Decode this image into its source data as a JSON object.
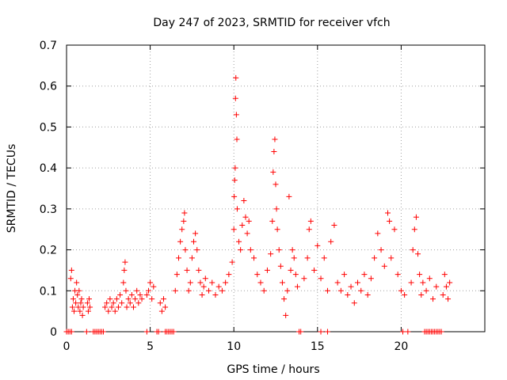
{
  "chart_data": {
    "type": "scatter",
    "title": "Day 247 of 2023, SRMTID for receiver vfch",
    "xlabel": "GPS time / hours",
    "ylabel": "SRMTID / TECUs",
    "xlim": [
      0,
      25
    ],
    "ylim": [
      0,
      0.7
    ],
    "xticks": [
      0,
      5,
      10,
      15,
      20
    ],
    "yticks": [
      0,
      0.1,
      0.2,
      0.3,
      0.4,
      0.5,
      0.6,
      0.7
    ],
    "grid": true,
    "series": [
      {
        "name": "SRMTID",
        "color": "#ff0000",
        "marker": "+",
        "points": [
          [
            0.25,
            0.13
          ],
          [
            0.3,
            0.15
          ],
          [
            0.35,
            0.06
          ],
          [
            0.4,
            0.08
          ],
          [
            0.45,
            0.05
          ],
          [
            0.5,
            0.1
          ],
          [
            0.55,
            0.07
          ],
          [
            0.6,
            0.12
          ],
          [
            0.65,
            0.09
          ],
          [
            0.7,
            0.06
          ],
          [
            0.75,
            0.1
          ],
          [
            0.8,
            0.05
          ],
          [
            0.85,
            0.07
          ],
          [
            0.9,
            0.08
          ],
          [
            0.95,
            0.04
          ],
          [
            1.0,
            0.06
          ],
          [
            1.25,
            0.07
          ],
          [
            1.3,
            0.05
          ],
          [
            1.35,
            0.08
          ],
          [
            1.4,
            0.06
          ],
          [
            2.3,
            0.06
          ],
          [
            2.4,
            0.07
          ],
          [
            2.5,
            0.05
          ],
          [
            2.6,
            0.08
          ],
          [
            2.7,
            0.06
          ],
          [
            2.8,
            0.07
          ],
          [
            2.9,
            0.05
          ],
          [
            3.0,
            0.08
          ],
          [
            3.1,
            0.06
          ],
          [
            3.2,
            0.09
          ],
          [
            3.3,
            0.07
          ],
          [
            3.4,
            0.12
          ],
          [
            3.45,
            0.15
          ],
          [
            3.5,
            0.17
          ],
          [
            3.55,
            0.1
          ],
          [
            3.6,
            0.06
          ],
          [
            3.7,
            0.08
          ],
          [
            3.8,
            0.07
          ],
          [
            3.9,
            0.09
          ],
          [
            4.0,
            0.06
          ],
          [
            4.1,
            0.08
          ],
          [
            4.2,
            0.1
          ],
          [
            4.3,
            0.07
          ],
          [
            4.4,
            0.09
          ],
          [
            4.5,
            0.08
          ],
          [
            4.8,
            0.09
          ],
          [
            4.9,
            0.1
          ],
          [
            5.0,
            0.12
          ],
          [
            5.1,
            0.08
          ],
          [
            5.2,
            0.11
          ],
          [
            5.6,
            0.07
          ],
          [
            5.7,
            0.05
          ],
          [
            5.8,
            0.08
          ],
          [
            5.9,
            0.06
          ],
          [
            6.5,
            0.1
          ],
          [
            6.6,
            0.14
          ],
          [
            6.7,
            0.18
          ],
          [
            6.8,
            0.22
          ],
          [
            6.9,
            0.25
          ],
          [
            7.0,
            0.27
          ],
          [
            7.05,
            0.29
          ],
          [
            7.1,
            0.2
          ],
          [
            7.2,
            0.15
          ],
          [
            7.3,
            0.1
          ],
          [
            7.4,
            0.12
          ],
          [
            7.5,
            0.18
          ],
          [
            7.6,
            0.22
          ],
          [
            7.7,
            0.24
          ],
          [
            7.8,
            0.2
          ],
          [
            7.9,
            0.15
          ],
          [
            8.0,
            0.12
          ],
          [
            8.1,
            0.09
          ],
          [
            8.2,
            0.11
          ],
          [
            8.3,
            0.13
          ],
          [
            8.5,
            0.1
          ],
          [
            8.7,
            0.12
          ],
          [
            8.9,
            0.09
          ],
          [
            9.1,
            0.11
          ],
          [
            9.3,
            0.1
          ],
          [
            9.5,
            0.12
          ],
          [
            9.7,
            0.14
          ],
          [
            9.9,
            0.17
          ],
          [
            10.0,
            0.25
          ],
          [
            10.02,
            0.33
          ],
          [
            10.05,
            0.37
          ],
          [
            10.08,
            0.4
          ],
          [
            10.1,
            0.57
          ],
          [
            10.12,
            0.62
          ],
          [
            10.15,
            0.53
          ],
          [
            10.18,
            0.47
          ],
          [
            10.2,
            0.3
          ],
          [
            10.3,
            0.22
          ],
          [
            10.4,
            0.2
          ],
          [
            10.5,
            0.26
          ],
          [
            10.6,
            0.32
          ],
          [
            10.7,
            0.28
          ],
          [
            10.8,
            0.24
          ],
          [
            10.9,
            0.27
          ],
          [
            11.0,
            0.2
          ],
          [
            11.2,
            0.18
          ],
          [
            11.4,
            0.14
          ],
          [
            11.6,
            0.12
          ],
          [
            11.8,
            0.1
          ],
          [
            12.0,
            0.15
          ],
          [
            12.2,
            0.19
          ],
          [
            12.3,
            0.27
          ],
          [
            12.35,
            0.39
          ],
          [
            12.4,
            0.44
          ],
          [
            12.45,
            0.47
          ],
          [
            12.5,
            0.36
          ],
          [
            12.55,
            0.3
          ],
          [
            12.6,
            0.25
          ],
          [
            12.7,
            0.2
          ],
          [
            12.8,
            0.16
          ],
          [
            12.9,
            0.12
          ],
          [
            13.0,
            0.08
          ],
          [
            13.1,
            0.04
          ],
          [
            13.2,
            0.1
          ],
          [
            13.3,
            0.33
          ],
          [
            13.4,
            0.15
          ],
          [
            13.5,
            0.2
          ],
          [
            13.6,
            0.18
          ],
          [
            13.7,
            0.14
          ],
          [
            13.8,
            0.11
          ],
          [
            14.2,
            0.13
          ],
          [
            14.4,
            0.18
          ],
          [
            14.5,
            0.25
          ],
          [
            14.6,
            0.27
          ],
          [
            14.8,
            0.15
          ],
          [
            15.0,
            0.21
          ],
          [
            15.2,
            0.13
          ],
          [
            15.4,
            0.18
          ],
          [
            15.6,
            0.1
          ],
          [
            15.8,
            0.22
          ],
          [
            16.0,
            0.26
          ],
          [
            16.2,
            0.12
          ],
          [
            16.4,
            0.1
          ],
          [
            16.6,
            0.14
          ],
          [
            16.8,
            0.09
          ],
          [
            17.0,
            0.11
          ],
          [
            17.2,
            0.07
          ],
          [
            17.4,
            0.12
          ],
          [
            17.6,
            0.1
          ],
          [
            17.8,
            0.14
          ],
          [
            18.0,
            0.09
          ],
          [
            18.2,
            0.13
          ],
          [
            18.4,
            0.18
          ],
          [
            18.6,
            0.24
          ],
          [
            18.8,
            0.2
          ],
          [
            19.0,
            0.16
          ],
          [
            19.2,
            0.29
          ],
          [
            19.3,
            0.27
          ],
          [
            19.4,
            0.18
          ],
          [
            19.6,
            0.25
          ],
          [
            19.8,
            0.14
          ],
          [
            20.0,
            0.1
          ],
          [
            20.2,
            0.09
          ],
          [
            20.6,
            0.12
          ],
          [
            20.7,
            0.2
          ],
          [
            20.8,
            0.25
          ],
          [
            20.9,
            0.28
          ],
          [
            21.0,
            0.19
          ],
          [
            21.1,
            0.14
          ],
          [
            21.2,
            0.09
          ],
          [
            21.3,
            0.12
          ],
          [
            21.5,
            0.1
          ],
          [
            21.7,
            0.13
          ],
          [
            21.9,
            0.08
          ],
          [
            22.1,
            0.11
          ],
          [
            22.5,
            0.09
          ],
          [
            22.6,
            0.14
          ],
          [
            22.7,
            0.11
          ],
          [
            22.8,
            0.08
          ],
          [
            22.9,
            0.12
          ]
        ]
      }
    ],
    "baseline_x": [
      0.0,
      0.1,
      0.2,
      0.3,
      1.2,
      1.6,
      1.7,
      1.8,
      1.9,
      2.0,
      2.1,
      2.2,
      4.8,
      5.4,
      5.5,
      5.9,
      6.0,
      6.1,
      6.2,
      6.3,
      6.4,
      13.9,
      14.0,
      15.2,
      15.6,
      20.1,
      20.4,
      21.4,
      21.5,
      21.6,
      21.7,
      21.8,
      21.9,
      22.0,
      22.1,
      22.2,
      22.3,
      22.4
    ]
  }
}
